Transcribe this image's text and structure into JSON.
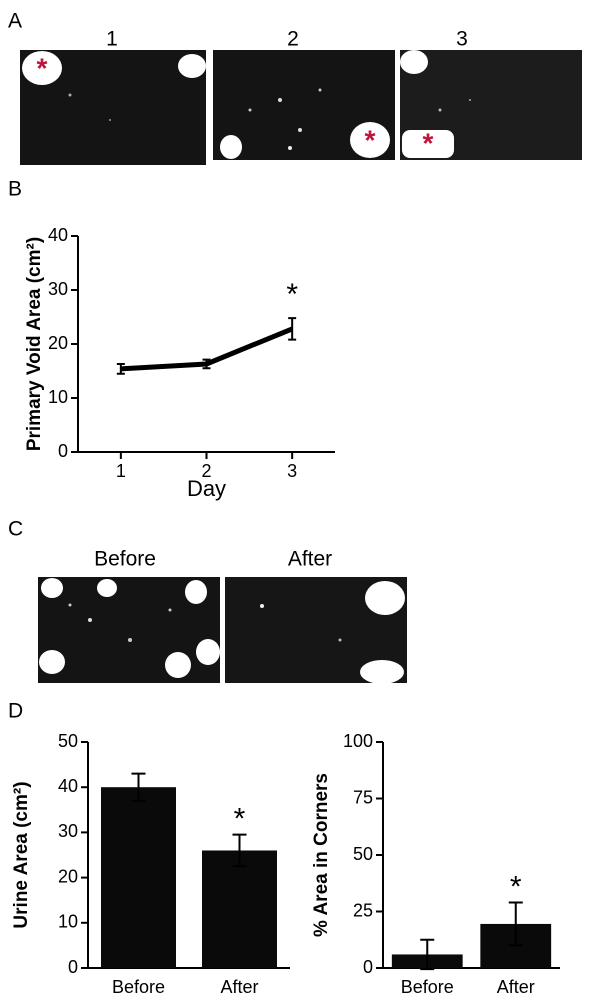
{
  "panels": {
    "A": {
      "label": "A",
      "images": [
        {
          "label": "1",
          "marker": "*"
        },
        {
          "label": "2",
          "marker": "*"
        },
        {
          "label": "3",
          "marker": "*"
        }
      ]
    },
    "B": {
      "label": "B"
    },
    "C": {
      "label": "C",
      "images": [
        "Before",
        "After"
      ]
    },
    "D": {
      "label": "D"
    }
  },
  "chart_data": [
    {
      "type": "line",
      "ylabel": "Primary Void Area (cm²)",
      "xlabel": "Day",
      "x": [
        1,
        2,
        3
      ],
      "xlim": [
        0.5,
        3.5
      ],
      "xticks": [
        1,
        2,
        3
      ],
      "values": [
        15.4,
        16.3,
        22.8
      ],
      "errors": [
        0.9,
        0.8,
        2.0
      ],
      "color": "#000000",
      "ylim": [
        0,
        40
      ],
      "yticks": [
        0,
        10,
        20,
        30,
        40
      ],
      "annotations": [
        {
          "text": "*",
          "x": 3
        }
      ]
    },
    {
      "type": "bar",
      "ylabel": "Urine Area (cm²)",
      "categories": [
        "Before",
        "After"
      ],
      "values": [
        40,
        26
      ],
      "errors": [
        3,
        3.5
      ],
      "color": "#0a0a0a",
      "ylim": [
        0,
        50
      ],
      "yticks": [
        0,
        10,
        20,
        30,
        40,
        50
      ],
      "annotations": [
        {
          "text": "*",
          "category": "After"
        }
      ]
    },
    {
      "type": "bar",
      "ylabel": "% Area in Corners",
      "categories": [
        "Before",
        "After"
      ],
      "values": [
        6,
        19.5
      ],
      "errors": [
        6.5,
        9.5
      ],
      "color": "#0a0a0a",
      "ylim": [
        0,
        100
      ],
      "yticks": [
        0,
        25,
        50,
        75,
        100
      ],
      "annotations": [
        {
          "text": "*",
          "category": "After"
        }
      ]
    }
  ]
}
